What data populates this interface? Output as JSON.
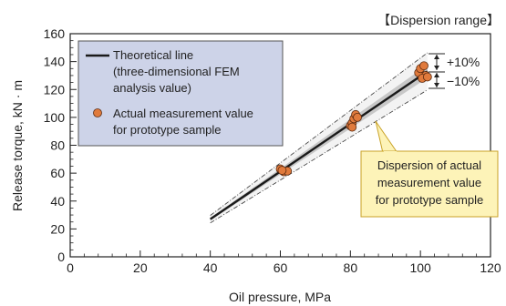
{
  "chart_data": {
    "type": "scatter",
    "xlabel": "Oil pressure, MPa",
    "ylabel": "Release torque, kN · m",
    "xlim": [
      0,
      120
    ],
    "ylim": [
      0,
      160
    ],
    "x_ticks": [
      0,
      20,
      40,
      60,
      80,
      100,
      120
    ],
    "y_ticks": [
      0,
      20,
      40,
      60,
      80,
      100,
      120,
      140,
      160
    ],
    "x_tick_labels": [
      "0",
      "20",
      "40",
      "60",
      "80",
      "100",
      "120"
    ],
    "y_tick_labels": [
      "0",
      "20",
      "40",
      "60",
      "80",
      "100",
      "120",
      "140",
      "160"
    ],
    "grid": false,
    "legend_position": "top-left",
    "theoretical_line": {
      "name": "Theoretical line (three-dimensional FEM analysis value)",
      "x": [
        40,
        102
      ],
      "y": [
        27,
        133
      ]
    },
    "dispersion_band": {
      "lower_percent": -10,
      "upper_percent": 10
    },
    "series": [
      {
        "name": "Actual measurement value for prototype sample",
        "points": [
          [
            60,
            63
          ],
          [
            61,
            61
          ],
          [
            62,
            61.5
          ],
          [
            60.5,
            62
          ],
          [
            80,
            94
          ],
          [
            80.5,
            96
          ],
          [
            81,
            99
          ],
          [
            81.5,
            102
          ],
          [
            80.5,
            93
          ],
          [
            82,
            100
          ],
          [
            99.5,
            132
          ],
          [
            100,
            135
          ],
          [
            101,
            137
          ],
          [
            101.5,
            130
          ],
          [
            100.5,
            128
          ],
          [
            102,
            129
          ]
        ]
      }
    ],
    "colors": {
      "line": "#1a1a1a",
      "band": "#c8c8c8",
      "marker": "#e07a3c",
      "marker_edge": "#5a2a10",
      "legend_bg": "#cdd3e8",
      "callout_bg": "#fdf3b8",
      "callout_border": "#c9a227"
    }
  },
  "legend": {
    "line_label_1": "Theoretical line",
    "line_label_2": "(three-dimensional FEM",
    "line_label_3": "analysis value)",
    "marker_label_1": "Actual measurement value",
    "marker_label_2": "for prototype sample"
  },
  "annotations": {
    "dispersion_title": "【Dispersion range】",
    "plus_label": "+10%",
    "minus_label": "−10%",
    "callout_1": "Dispersion of actual",
    "callout_2": "measurement value",
    "callout_3": "for prototype sample"
  }
}
